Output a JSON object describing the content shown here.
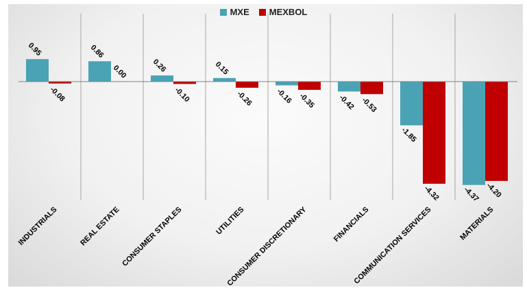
{
  "colors": {
    "MXE": "#4aa3b5",
    "MEXBOL": "#c00000",
    "grid": "#a6a6a6",
    "axis": "#7f7f7f"
  },
  "legend": [
    {
      "name": "MXE",
      "color": "#4aa3b5"
    },
    {
      "name": "MEXBOL",
      "color": "#c00000"
    }
  ],
  "chart_data": {
    "type": "bar",
    "categories": [
      "INDUSTRIALS",
      "REAL ESTATE",
      "CONSUMER STAPLES",
      "UTILITIES",
      "CONSUMER DISCRETIONARY",
      "FINANCIALS",
      "COMMUNICATION SERVICES",
      "MATERIALS"
    ],
    "series": [
      {
        "name": "MXE",
        "values": [
          0.95,
          0.86,
          0.26,
          0.15,
          -0.16,
          -0.42,
          -1.85,
          -4.37
        ],
        "labels": [
          "0.95",
          "0.86",
          "0.26",
          "0.15",
          "-0.16",
          "-0.42",
          "-1.85",
          "-4.37"
        ]
      },
      {
        "name": "MEXBOL",
        "values": [
          -0.08,
          0.0,
          -0.1,
          -0.26,
          -0.35,
          -0.53,
          -4.32,
          -4.2
        ],
        "labels": [
          "-0.08",
          "0.00",
          "-0.10",
          "-0.26",
          "-0.35",
          "-0.53",
          "-4.32",
          "-4.20"
        ]
      }
    ],
    "ylim": [
      -5.0,
      1.0
    ],
    "grid": "vertical separators",
    "legend_position": "top-center"
  }
}
